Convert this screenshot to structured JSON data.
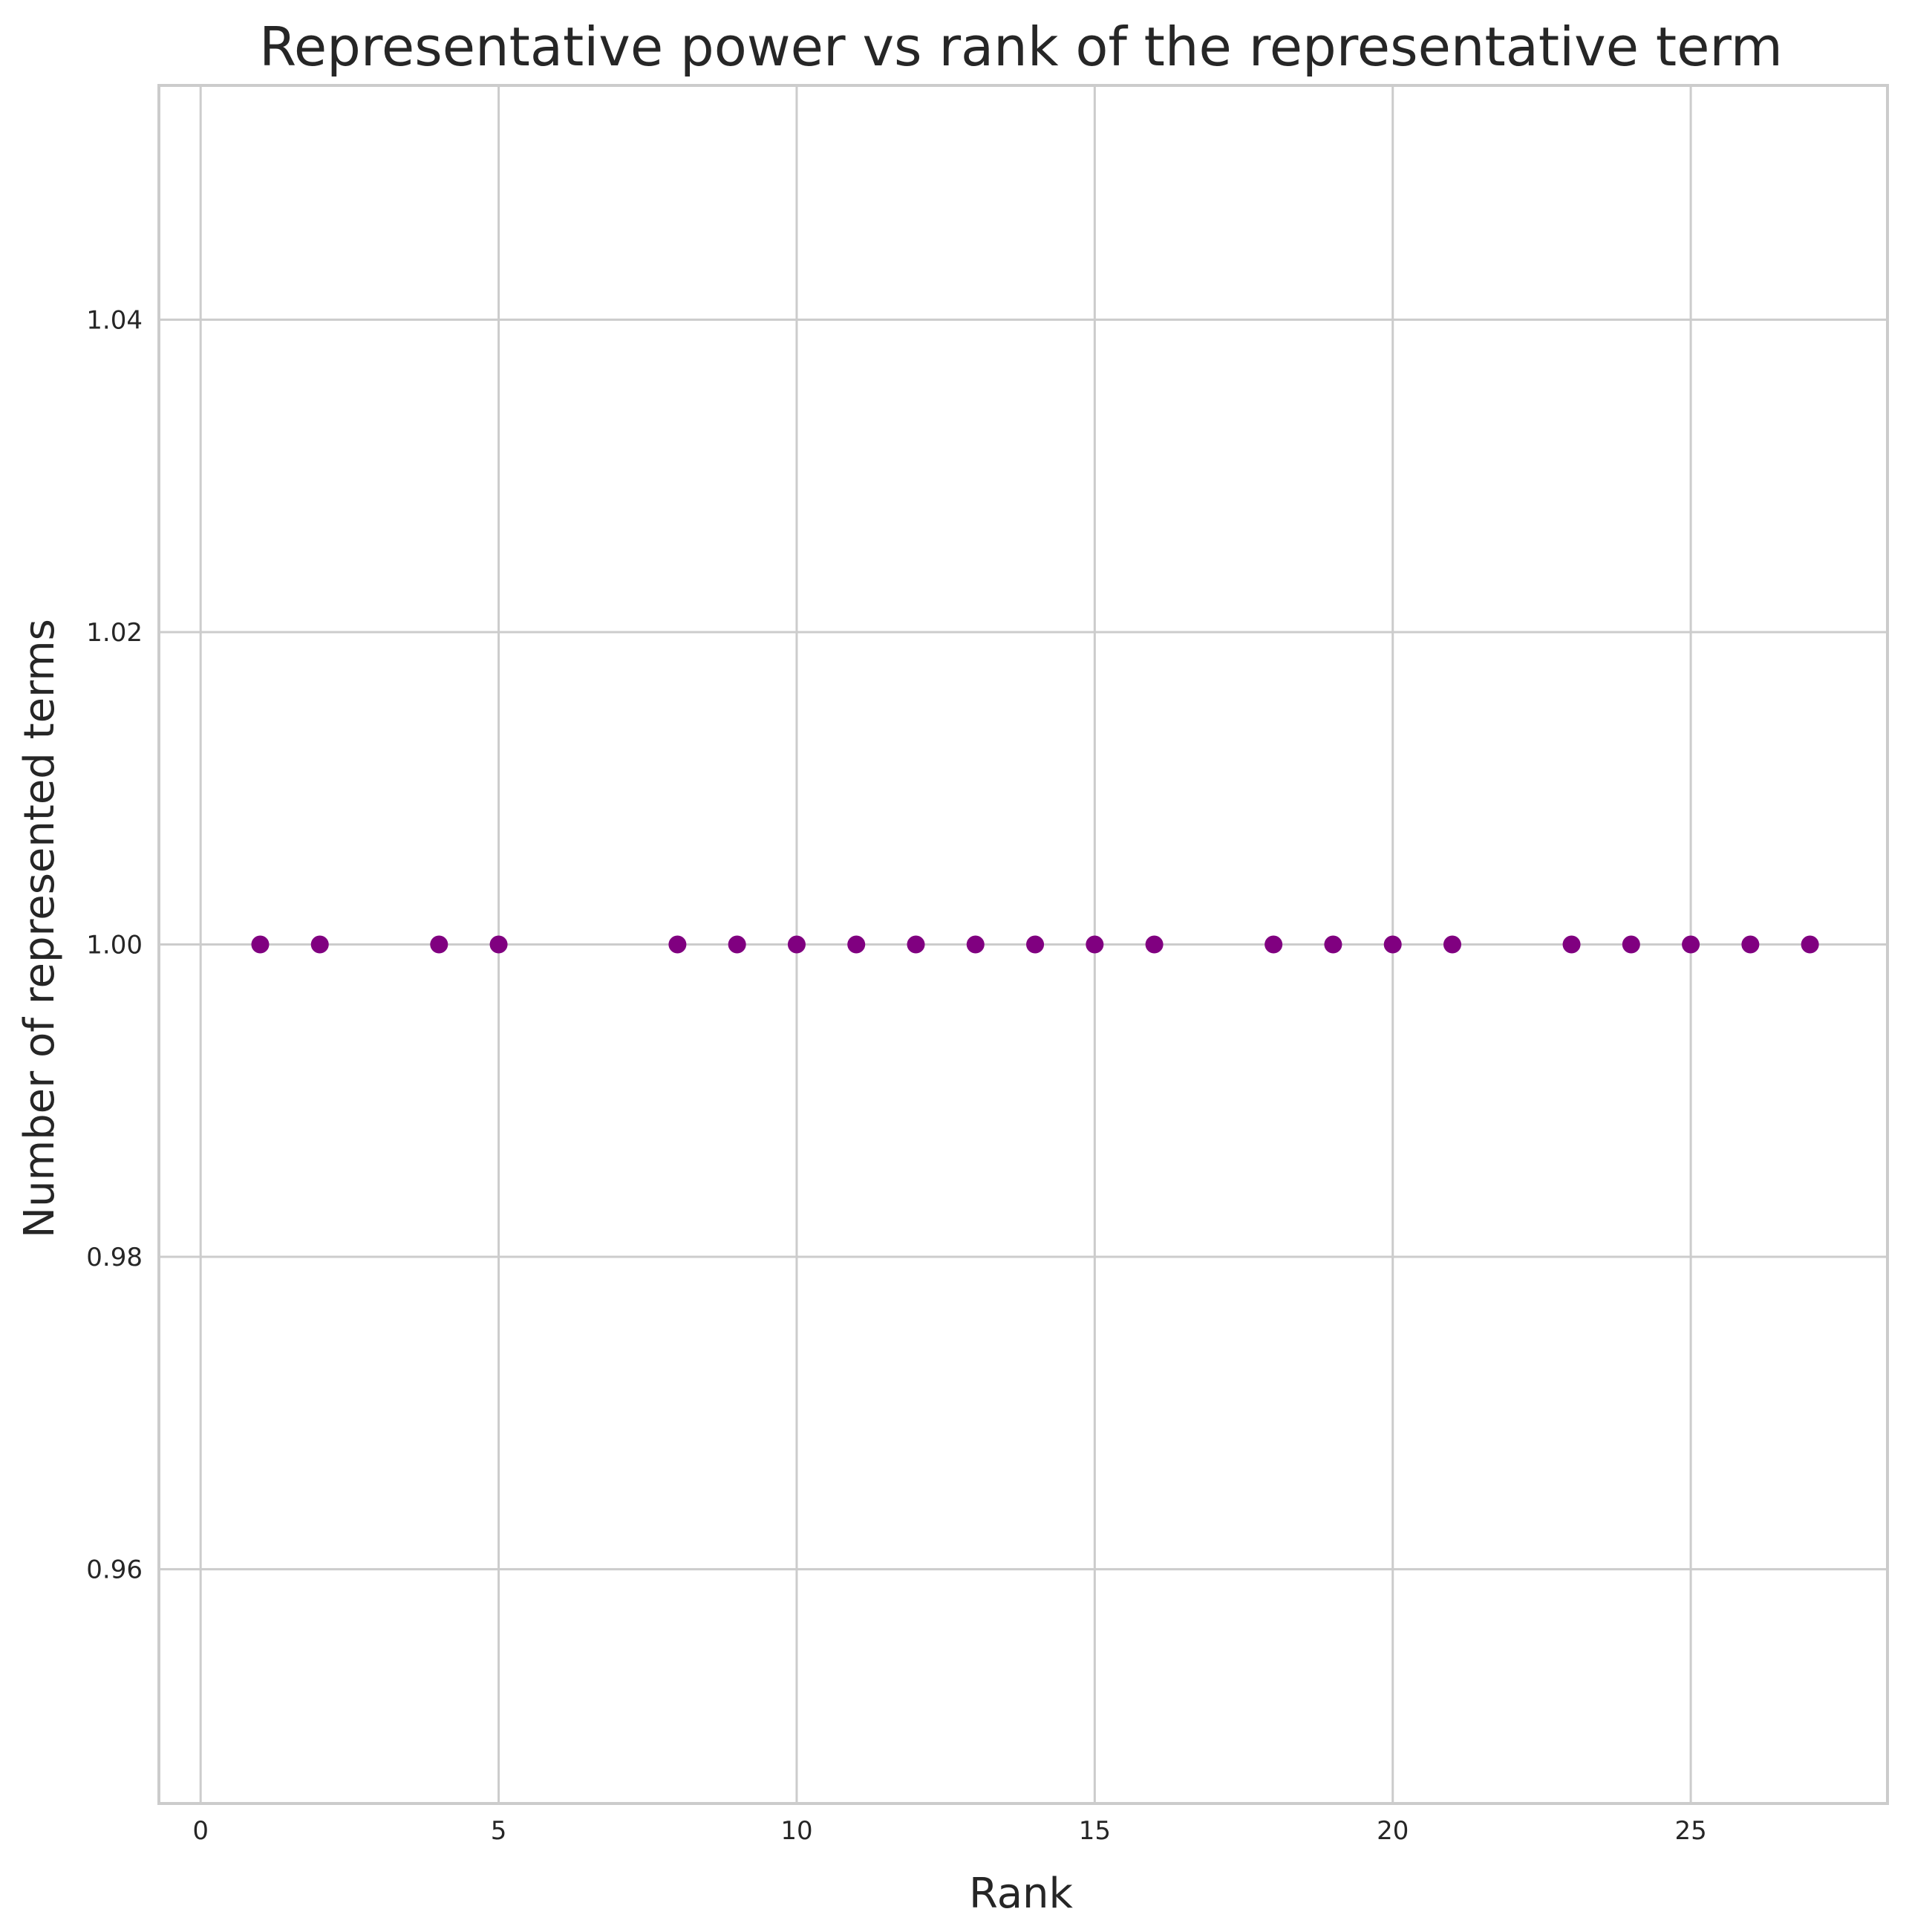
{
  "chart_data": {
    "type": "scatter",
    "title": "Representative power vs rank of the representative term",
    "xlabel": "Rank",
    "ylabel": "Number of represented terms",
    "xlim": [
      -0.7,
      28.3
    ],
    "ylim": [
      0.945,
      1.055
    ],
    "x_ticks": [
      0,
      5,
      10,
      15,
      20,
      25
    ],
    "x_tick_labels": [
      "0",
      "5",
      "10",
      "15",
      "20",
      "25"
    ],
    "y_ticks": [
      0.96,
      0.98,
      1.0,
      1.02,
      1.04
    ],
    "y_tick_labels": [
      "0.96",
      "0.98",
      "1.00",
      "1.02",
      "1.04"
    ],
    "grid": true,
    "marker_color": "#800080",
    "x": [
      1,
      2,
      4,
      5,
      8,
      9,
      10,
      11,
      12,
      13,
      14,
      15,
      16,
      18,
      19,
      20,
      21,
      23,
      24,
      25,
      26,
      27
    ],
    "y": [
      1,
      1,
      1,
      1,
      1,
      1,
      1,
      1,
      1,
      1,
      1,
      1,
      1,
      1,
      1,
      1,
      1,
      1,
      1,
      1,
      1,
      1
    ]
  }
}
